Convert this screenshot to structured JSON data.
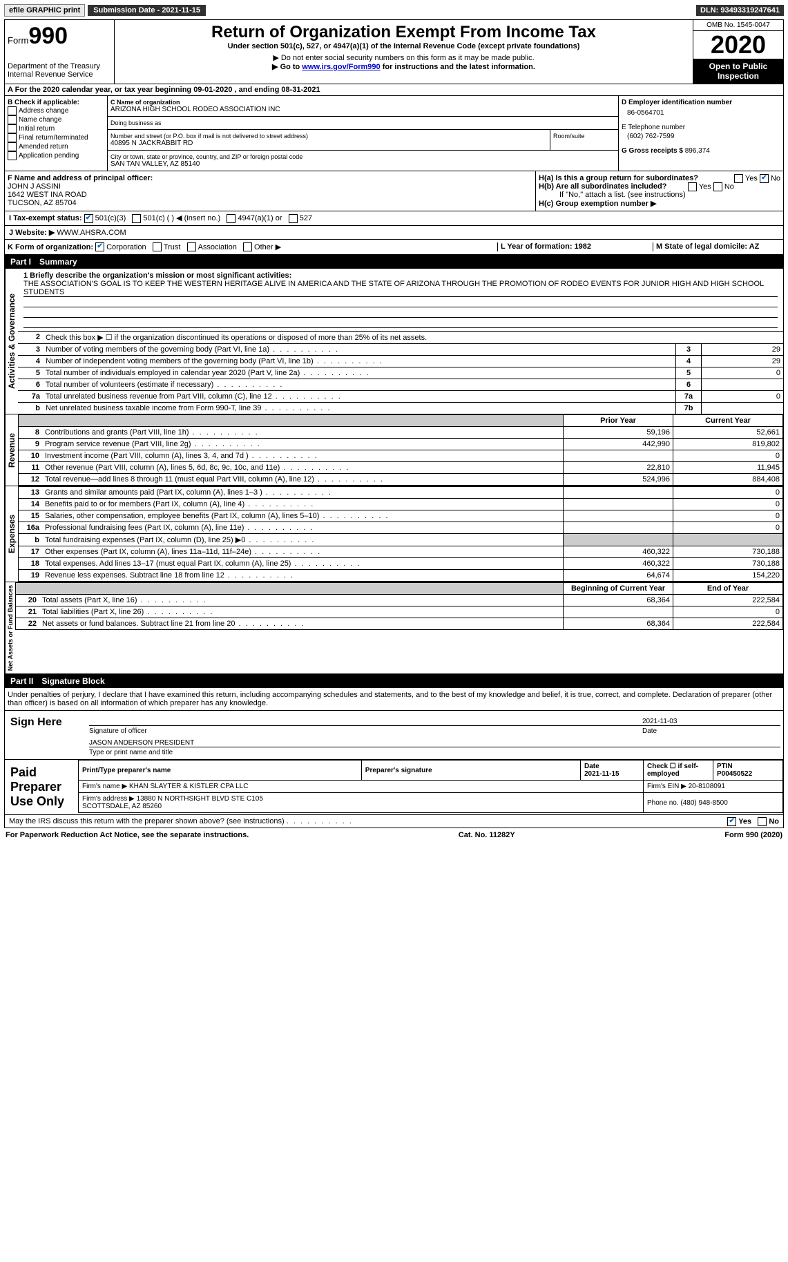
{
  "topbar": {
    "efile": "efile GRAPHIC print",
    "submission_label": "Submission Date - 2021-11-15",
    "dln": "DLN: 93493319247641"
  },
  "header": {
    "form_word": "Form",
    "form_num": "990",
    "dept": "Department of the Treasury\nInternal Revenue Service",
    "title": "Return of Organization Exempt From Income Tax",
    "subtitle": "Under section 501(c), 527, or 4947(a)(1) of the Internal Revenue Code (except private foundations)",
    "note1": "▶ Do not enter social security numbers on this form as it may be made public.",
    "note2_pre": "▶ Go to ",
    "note2_link": "www.irs.gov/Form990",
    "note2_post": " for instructions and the latest information.",
    "omb": "OMB No. 1545-0047",
    "year": "2020",
    "open_public": "Open to Public Inspection"
  },
  "taxyear": "A For the 2020 calendar year, or tax year beginning 09-01-2020   , and ending 08-31-2021",
  "box_b": {
    "title": "B Check if applicable:",
    "items": [
      "Address change",
      "Name change",
      "Initial return",
      "Final return/terminated",
      "Amended return",
      "Application pending"
    ]
  },
  "box_c": {
    "name_label": "C Name of organization",
    "name": "ARIZONA HIGH SCHOOL RODEO ASSOCIATION INC",
    "dba_label": "Doing business as",
    "addr_label": "Number and street (or P.O. box if mail is not delivered to street address)",
    "addr": "40895 N JACKRABBIT RD",
    "room_label": "Room/suite",
    "city_label": "City or town, state or province, country, and ZIP or foreign postal code",
    "city": "SAN TAN VALLEY, AZ  85140"
  },
  "box_d": {
    "ein_label": "D Employer identification number",
    "ein": "86-0564701",
    "phone_label": "E Telephone number",
    "phone": "(602) 762-7599",
    "gross_label": "G Gross receipts $",
    "gross": "896,374"
  },
  "box_f": {
    "label": "F Name and address of principal officer:",
    "name": "JOHN J ASSINI",
    "addr1": "1642 WEST INA ROAD",
    "addr2": "TUCSON, AZ  85704"
  },
  "box_h": {
    "ha": "H(a)  Is this a group return for subordinates?",
    "hb": "H(b)  Are all subordinates included?",
    "hb_note": "If \"No,\" attach a list. (see instructions)",
    "hc": "H(c)  Group exemption number ▶"
  },
  "line_i": {
    "label": "I   Tax-exempt status:",
    "opts": [
      "501(c)(3)",
      "501(c) (  ) ◀ (insert no.)",
      "4947(a)(1) or",
      "527"
    ]
  },
  "line_j": {
    "label": "J   Website: ▶",
    "value": "WWW.AHSRA.COM"
  },
  "line_k": {
    "label": "K Form of organization:",
    "opts": [
      "Corporation",
      "Trust",
      "Association",
      "Other ▶"
    ],
    "l_label": "L Year of formation: 1982",
    "m_label": "M State of legal domicile: AZ"
  },
  "part1": {
    "label": "Part I",
    "title": "Summary"
  },
  "mission": {
    "q1": "1  Briefly describe the organization's mission or most significant activities:",
    "text": "THE ASSOCIATION'S GOAL IS TO KEEP THE WESTERN HERITAGE ALIVE IN AMERICA AND THE STATE OF ARIZONA THROUGH THE PROMOTION OF RODEO EVENTS FOR JUNIOR HIGH AND HIGH SCHOOL STUDENTS"
  },
  "gov_lines": [
    {
      "n": "2",
      "desc": "Check this box ▶ ☐  if the organization discontinued its operations or disposed of more than 25% of its net assets.",
      "lbl": "",
      "val": ""
    },
    {
      "n": "3",
      "desc": "Number of voting members of the governing body (Part VI, line 1a)",
      "lbl": "3",
      "val": "29"
    },
    {
      "n": "4",
      "desc": "Number of independent voting members of the governing body (Part VI, line 1b)",
      "lbl": "4",
      "val": "29"
    },
    {
      "n": "5",
      "desc": "Total number of individuals employed in calendar year 2020 (Part V, line 2a)",
      "lbl": "5",
      "val": "0"
    },
    {
      "n": "6",
      "desc": "Total number of volunteers (estimate if necessary)",
      "lbl": "6",
      "val": ""
    },
    {
      "n": "7a",
      "desc": "Total unrelated business revenue from Part VIII, column (C), line 12",
      "lbl": "7a",
      "val": "0"
    },
    {
      "n": "b",
      "desc": "Net unrelated business taxable income from Form 990-T, line 39",
      "lbl": "7b",
      "val": ""
    }
  ],
  "money_header": {
    "prior": "Prior Year",
    "curr": "Current Year"
  },
  "revenue": [
    {
      "n": "8",
      "desc": "Contributions and grants (Part VIII, line 1h)",
      "prior": "59,196",
      "curr": "52,661"
    },
    {
      "n": "9",
      "desc": "Program service revenue (Part VIII, line 2g)",
      "prior": "442,990",
      "curr": "819,802"
    },
    {
      "n": "10",
      "desc": "Investment income (Part VIII, column (A), lines 3, 4, and 7d )",
      "prior": "",
      "curr": "0"
    },
    {
      "n": "11",
      "desc": "Other revenue (Part VIII, column (A), lines 5, 6d, 8c, 9c, 10c, and 11e)",
      "prior": "22,810",
      "curr": "11,945"
    },
    {
      "n": "12",
      "desc": "Total revenue—add lines 8 through 11 (must equal Part VIII, column (A), line 12)",
      "prior": "524,996",
      "curr": "884,408"
    }
  ],
  "expenses": [
    {
      "n": "13",
      "desc": "Grants and similar amounts paid (Part IX, column (A), lines 1–3 )",
      "prior": "",
      "curr": "0"
    },
    {
      "n": "14",
      "desc": "Benefits paid to or for members (Part IX, column (A), line 4)",
      "prior": "",
      "curr": "0"
    },
    {
      "n": "15",
      "desc": "Salaries, other compensation, employee benefits (Part IX, column (A), lines 5–10)",
      "prior": "",
      "curr": "0"
    },
    {
      "n": "16a",
      "desc": "Professional fundraising fees (Part IX, column (A), line 11e)",
      "prior": "",
      "curr": "0"
    },
    {
      "n": "b",
      "desc": "Total fundraising expenses (Part IX, column (D), line 25) ▶0",
      "prior": "grey",
      "curr": "grey"
    },
    {
      "n": "17",
      "desc": "Other expenses (Part IX, column (A), lines 11a–11d, 11f–24e)",
      "prior": "460,322",
      "curr": "730,188"
    },
    {
      "n": "18",
      "desc": "Total expenses. Add lines 13–17 (must equal Part IX, column (A), line 25)",
      "prior": "460,322",
      "curr": "730,188"
    },
    {
      "n": "19",
      "desc": "Revenue less expenses. Subtract line 18 from line 12",
      "prior": "64,674",
      "curr": "154,220"
    }
  ],
  "netassets_header": {
    "prior": "Beginning of Current Year",
    "curr": "End of Year"
  },
  "netassets": [
    {
      "n": "20",
      "desc": "Total assets (Part X, line 16)",
      "prior": "68,364",
      "curr": "222,584"
    },
    {
      "n": "21",
      "desc": "Total liabilities (Part X, line 26)",
      "prior": "",
      "curr": "0"
    },
    {
      "n": "22",
      "desc": "Net assets or fund balances. Subtract line 21 from line 20",
      "prior": "68,364",
      "curr": "222,584"
    }
  ],
  "part2": {
    "label": "Part II",
    "title": "Signature Block"
  },
  "sig_decl": "Under penalties of perjury, I declare that I have examined this return, including accompanying schedules and statements, and to the best of my knowledge and belief, it is true, correct, and complete. Declaration of preparer (other than officer) is based on all information of which preparer has any knowledge.",
  "sign_here": "Sign Here",
  "sig": {
    "officer_sig": "Signature of officer",
    "date": "Date",
    "date_val": "2021-11-03",
    "name": "JASON ANDERSON  PRESIDENT",
    "name_label": "Type or print name and title"
  },
  "paid_label": "Paid Preparer Use Only",
  "preparer": {
    "h1": "Print/Type preparer's name",
    "h2": "Preparer's signature",
    "h3": "Date",
    "h4": "Check ☐ if self-employed",
    "h5": "PTIN",
    "date": "2021-11-15",
    "ptin": "P00450522",
    "firm_name_lbl": "Firm's name  ▶",
    "firm_name": "KHAN SLAYTER & KISTLER CPA LLC",
    "firm_ein_lbl": "Firm's EIN ▶",
    "firm_ein": "20-8108091",
    "firm_addr_lbl": "Firm's address ▶",
    "firm_addr": "13880 N NORTHSIGHT BLVD STE C105\nSCOTTSDALE, AZ  85260",
    "phone_lbl": "Phone no.",
    "phone": "(480) 948-8500"
  },
  "discuss": "May the IRS discuss this return with the preparer shown above? (see instructions)",
  "footer": {
    "left": "For Paperwork Reduction Act Notice, see the separate instructions.",
    "mid": "Cat. No. 11282Y",
    "right": "Form 990 (2020)"
  },
  "side_labels": {
    "gov": "Activities & Governance",
    "rev": "Revenue",
    "exp": "Expenses",
    "net": "Net Assets or Fund Balances"
  }
}
